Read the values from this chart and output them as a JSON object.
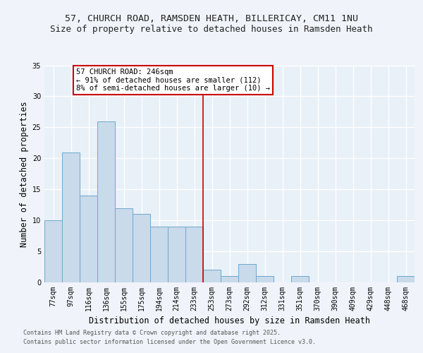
{
  "title_line1": "57, CHURCH ROAD, RAMSDEN HEATH, BILLERICAY, CM11 1NU",
  "title_line2": "Size of property relative to detached houses in Ramsden Heath",
  "xlabel": "Distribution of detached houses by size in Ramsden Heath",
  "ylabel": "Number of detached properties",
  "categories": [
    "77sqm",
    "97sqm",
    "116sqm",
    "136sqm",
    "155sqm",
    "175sqm",
    "194sqm",
    "214sqm",
    "233sqm",
    "253sqm",
    "273sqm",
    "292sqm",
    "312sqm",
    "331sqm",
    "351sqm",
    "370sqm",
    "390sqm",
    "409sqm",
    "429sqm",
    "448sqm",
    "468sqm"
  ],
  "values": [
    10,
    21,
    14,
    26,
    12,
    11,
    9,
    9,
    9,
    2,
    1,
    3,
    1,
    0,
    1,
    0,
    0,
    0,
    0,
    0,
    1
  ],
  "bar_color": "#c9daea",
  "bar_edge_color": "#6ea8cc",
  "bg_color": "#e8f0f8",
  "grid_color": "#ffffff",
  "fig_bg_color": "#f0f4fa",
  "vline_x_index": 8.5,
  "vline_color": "#cc0000",
  "annotation_text": "57 CHURCH ROAD: 246sqm\n← 91% of detached houses are smaller (112)\n8% of semi-detached houses are larger (10) →",
  "annotation_box_color": "#ffffff",
  "annotation_box_edge": "#cc0000",
  "ylim": [
    0,
    35
  ],
  "yticks": [
    0,
    5,
    10,
    15,
    20,
    25,
    30,
    35
  ],
  "footer_line1": "Contains HM Land Registry data © Crown copyright and database right 2025.",
  "footer_line2": "Contains public sector information licensed under the Open Government Licence v3.0.",
  "title_fontsize": 9.5,
  "title2_fontsize": 9.0,
  "axis_label_fontsize": 8.5,
  "tick_fontsize": 7.0,
  "footer_fontsize": 6.0,
  "annot_fontsize": 7.5
}
